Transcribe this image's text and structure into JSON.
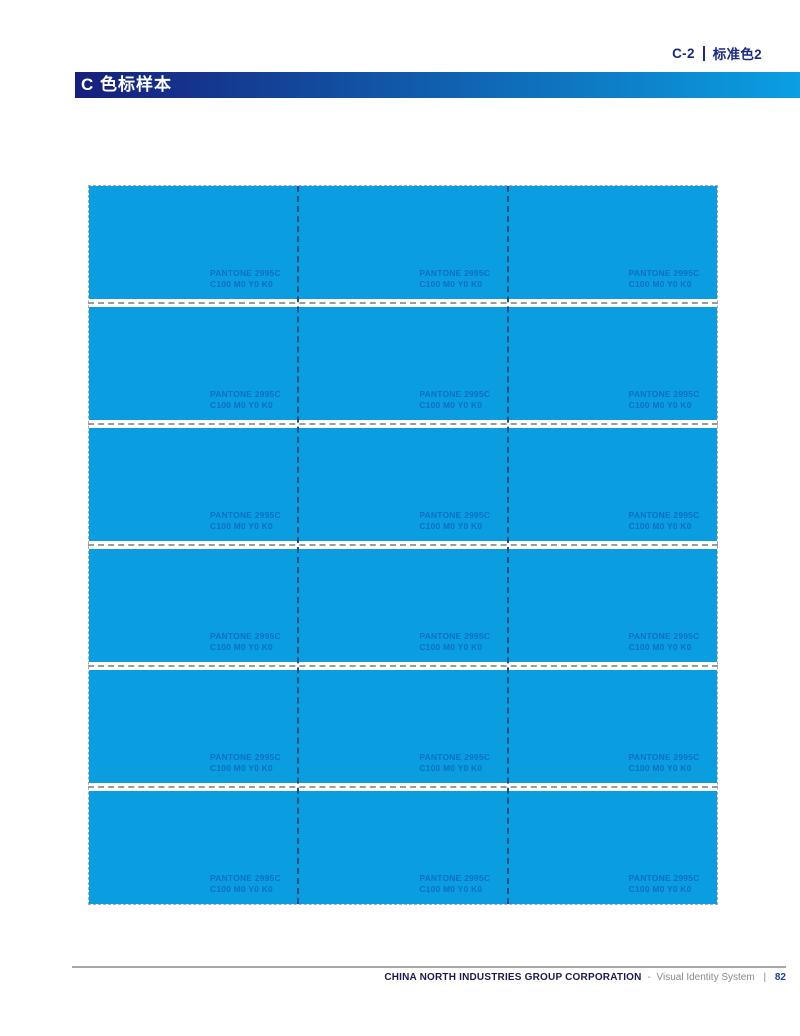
{
  "header": {
    "code": "C-2",
    "section": "标准色2"
  },
  "title_bar": {
    "label": "C 色标样本"
  },
  "grid": {
    "rows": 6,
    "columns": 3,
    "swatch": {
      "pantone": "PANTONE 2995C",
      "cmyk": "C100 M0 Y0 K0"
    }
  },
  "footer": {
    "company": "CHINA NORTH INDUSTRIES GROUP CORPORATION",
    "separator": "-",
    "system_label": "Visual Identity System",
    "divider": "|",
    "page_number": "82"
  },
  "theme": {
    "header_text": "#1B2A7E",
    "title_grad_left": "#171F7B",
    "title_grad_right": "#0A9FE2",
    "swatch_fill": "#0A9EE0",
    "swatch_label": "#0A70C2",
    "column_divider": "#155089",
    "cut_line": "#A9A9A9",
    "row_gap_line": "#9B9B9B",
    "footer_line": "#A8A8A8",
    "footer_company": "#1B1B4D",
    "footer_muted": "#8A8A8A",
    "footer_page": "#1C3F9E"
  }
}
